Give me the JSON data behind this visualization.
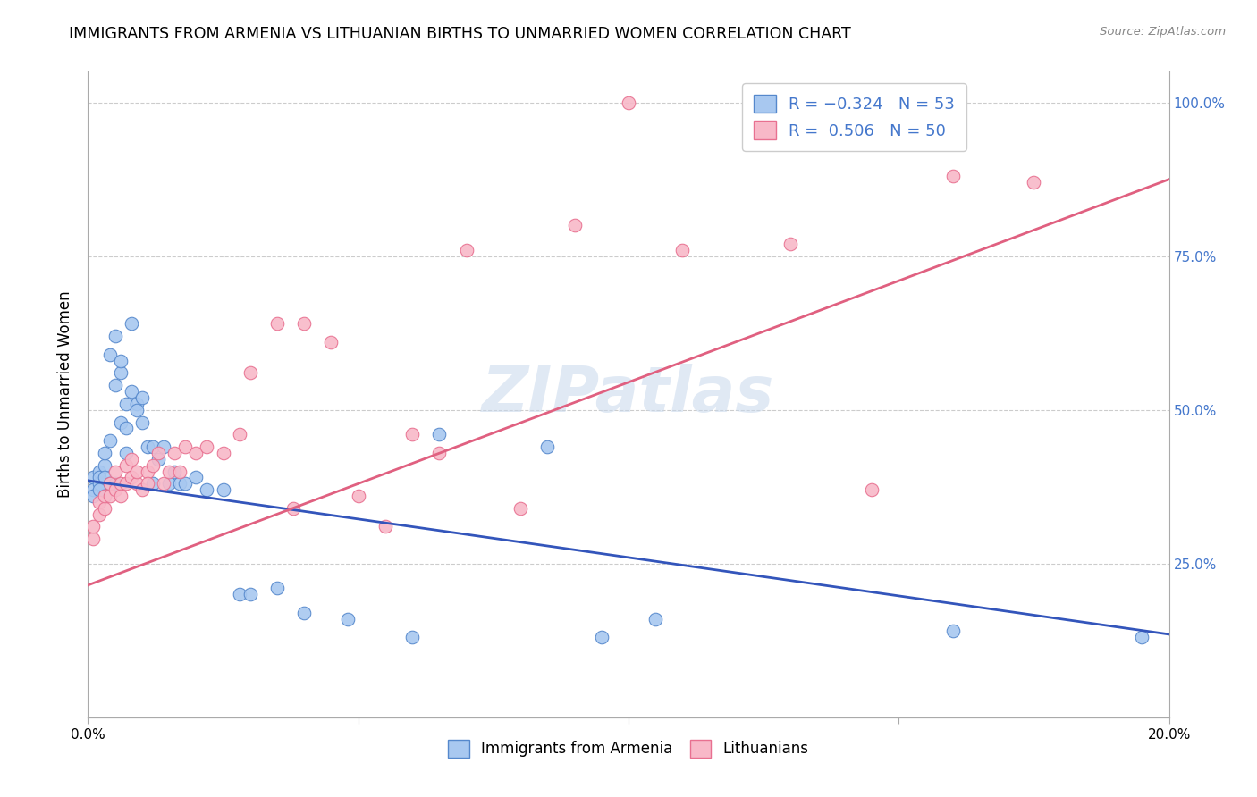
{
  "title": "IMMIGRANTS FROM ARMENIA VS LITHUANIAN BIRTHS TO UNMARRIED WOMEN CORRELATION CHART",
  "source": "Source: ZipAtlas.com",
  "ylabel": "Births to Unmarried Women",
  "xlim": [
    0.0,
    0.2
  ],
  "ylim": [
    0.0,
    1.05
  ],
  "blue_color": "#A8C8F0",
  "pink_color": "#F8B8C8",
  "blue_edge_color": "#5588CC",
  "pink_edge_color": "#E87090",
  "blue_line_color": "#3355BB",
  "pink_line_color": "#E06080",
  "right_tick_color": "#4477CC",
  "watermark": "ZIPatlas",
  "blue_scatter_x": [
    0.001,
    0.001,
    0.001,
    0.002,
    0.002,
    0.002,
    0.002,
    0.003,
    0.003,
    0.003,
    0.003,
    0.004,
    0.004,
    0.004,
    0.005,
    0.005,
    0.005,
    0.006,
    0.006,
    0.006,
    0.007,
    0.007,
    0.007,
    0.008,
    0.008,
    0.009,
    0.009,
    0.01,
    0.01,
    0.011,
    0.012,
    0.012,
    0.013,
    0.014,
    0.015,
    0.016,
    0.017,
    0.018,
    0.02,
    0.022,
    0.025,
    0.028,
    0.03,
    0.035,
    0.04,
    0.048,
    0.06,
    0.065,
    0.085,
    0.095,
    0.105,
    0.16,
    0.195
  ],
  "blue_scatter_y": [
    0.39,
    0.37,
    0.36,
    0.4,
    0.38,
    0.39,
    0.37,
    0.41,
    0.39,
    0.43,
    0.36,
    0.59,
    0.45,
    0.38,
    0.62,
    0.54,
    0.38,
    0.56,
    0.48,
    0.58,
    0.51,
    0.47,
    0.43,
    0.64,
    0.53,
    0.51,
    0.5,
    0.48,
    0.52,
    0.44,
    0.44,
    0.38,
    0.42,
    0.44,
    0.38,
    0.4,
    0.38,
    0.38,
    0.39,
    0.37,
    0.37,
    0.2,
    0.2,
    0.21,
    0.17,
    0.16,
    0.13,
    0.46,
    0.44,
    0.13,
    0.16,
    0.14,
    0.13
  ],
  "pink_scatter_x": [
    0.001,
    0.001,
    0.002,
    0.002,
    0.003,
    0.003,
    0.004,
    0.004,
    0.005,
    0.005,
    0.006,
    0.006,
    0.007,
    0.007,
    0.008,
    0.008,
    0.009,
    0.009,
    0.01,
    0.011,
    0.011,
    0.012,
    0.013,
    0.014,
    0.015,
    0.016,
    0.017,
    0.018,
    0.02,
    0.022,
    0.025,
    0.028,
    0.03,
    0.035,
    0.038,
    0.04,
    0.045,
    0.05,
    0.055,
    0.06,
    0.065,
    0.07,
    0.08,
    0.09,
    0.1,
    0.11,
    0.13,
    0.145,
    0.16,
    0.175
  ],
  "pink_scatter_y": [
    0.29,
    0.31,
    0.33,
    0.35,
    0.34,
    0.36,
    0.36,
    0.38,
    0.37,
    0.4,
    0.38,
    0.36,
    0.38,
    0.41,
    0.39,
    0.42,
    0.38,
    0.4,
    0.37,
    0.4,
    0.38,
    0.41,
    0.43,
    0.38,
    0.4,
    0.43,
    0.4,
    0.44,
    0.43,
    0.44,
    0.43,
    0.46,
    0.56,
    0.64,
    0.34,
    0.64,
    0.61,
    0.36,
    0.31,
    0.46,
    0.43,
    0.76,
    0.34,
    0.8,
    1.0,
    0.76,
    0.77,
    0.37,
    0.88,
    0.87
  ]
}
